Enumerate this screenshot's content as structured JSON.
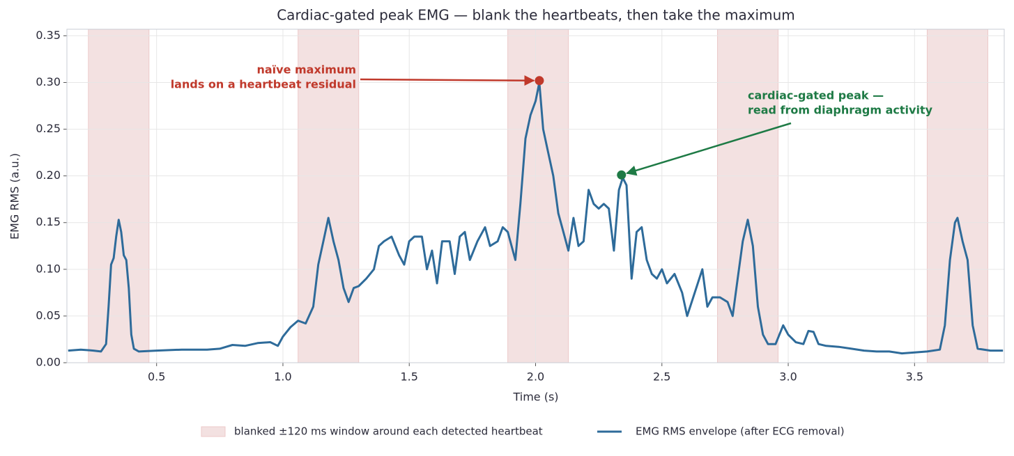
{
  "chart_data": {
    "type": "line",
    "title": "Cardiac-gated peak EMG — blank the heartbeats, then take the maximum",
    "x_label": "Time (s)",
    "y_label": "EMG RMS  (a.u.)",
    "xlim": [
      0.145,
      3.855
    ],
    "ylim": [
      0,
      0.357
    ],
    "xticks": [
      0.5,
      {
        "value": 1,
        "label": "1.0"
      },
      1.5,
      {
        "value": 2,
        "label": "2.0"
      },
      2.5,
      {
        "value": 3,
        "label": "3.0"
      },
      3.5
    ],
    "yticks": [
      {
        "value": 0,
        "label": "0.00"
      },
      {
        "value": 0.05,
        "label": "0.05"
      },
      {
        "value": 0.1,
        "label": "0.10"
      },
      {
        "value": 0.15,
        "label": "0.15"
      },
      {
        "value": 0.2,
        "label": "0.20"
      },
      {
        "value": 0.25,
        "label": "0.25"
      },
      {
        "value": 0.3,
        "label": "0.30"
      },
      {
        "value": 0.35,
        "label": "0.35"
      }
    ],
    "grid": true,
    "legend": "bottom",
    "bands_name": "blanked ±120 ms window around each detected heartbeat",
    "bands_color": "#f3e1e1",
    "bands": [
      [
        0.23,
        0.47
      ],
      [
        1.06,
        1.3
      ],
      [
        1.89,
        2.13
      ],
      [
        2.72,
        2.96
      ],
      [
        3.55,
        3.79
      ]
    ],
    "x": [
      0.15,
      0.2,
      0.25,
      0.28,
      0.3,
      0.31,
      0.32,
      0.33,
      0.34,
      0.35,
      0.36,
      0.37,
      0.38,
      0.39,
      0.4,
      0.41,
      0.43,
      0.5,
      0.6,
      0.7,
      0.75,
      0.8,
      0.85,
      0.9,
      0.95,
      0.98,
      1.0,
      1.03,
      1.06,
      1.09,
      1.12,
      1.14,
      1.16,
      1.18,
      1.2,
      1.22,
      1.24,
      1.26,
      1.28,
      1.3,
      1.33,
      1.36,
      1.38,
      1.4,
      1.43,
      1.46,
      1.48,
      1.5,
      1.52,
      1.55,
      1.57,
      1.59,
      1.61,
      1.63,
      1.66,
      1.68,
      1.7,
      1.72,
      1.74,
      1.77,
      1.8,
      1.82,
      1.85,
      1.87,
      1.89,
      1.92,
      1.94,
      1.96,
      1.98,
      2.0,
      2.015,
      2.03,
      2.05,
      2.07,
      2.09,
      2.11,
      2.13,
      2.15,
      2.17,
      2.19,
      2.21,
      2.23,
      2.25,
      2.27,
      2.29,
      2.31,
      2.33,
      2.345,
      2.36,
      2.38,
      2.4,
      2.42,
      2.44,
      2.46,
      2.48,
      2.5,
      2.52,
      2.55,
      2.58,
      2.6,
      2.63,
      2.66,
      2.68,
      2.7,
      2.73,
      2.76,
      2.78,
      2.8,
      2.82,
      2.84,
      2.86,
      2.88,
      2.9,
      2.92,
      2.95,
      2.98,
      3.0,
      3.03,
      3.06,
      3.08,
      3.1,
      3.12,
      3.15,
      3.2,
      3.25,
      3.3,
      3.35,
      3.4,
      3.45,
      3.5,
      3.55,
      3.6,
      3.62,
      3.64,
      3.66,
      3.67,
      3.69,
      3.71,
      3.73,
      3.75,
      3.8,
      3.85
    ],
    "series": [
      {
        "name": "EMG RMS envelope (after ECG removal)",
        "color": "#2e6b9a",
        "values": [
          0.013,
          0.014,
          0.013,
          0.012,
          0.02,
          0.06,
          0.105,
          0.112,
          0.135,
          0.153,
          0.14,
          0.115,
          0.11,
          0.08,
          0.03,
          0.015,
          0.012,
          0.013,
          0.014,
          0.014,
          0.015,
          0.019,
          0.018,
          0.021,
          0.022,
          0.018,
          0.028,
          0.038,
          0.045,
          0.042,
          0.06,
          0.105,
          0.13,
          0.155,
          0.13,
          0.11,
          0.08,
          0.065,
          0.08,
          0.082,
          0.09,
          0.1,
          0.125,
          0.13,
          0.135,
          0.115,
          0.105,
          0.13,
          0.135,
          0.135,
          0.1,
          0.12,
          0.085,
          0.13,
          0.13,
          0.095,
          0.135,
          0.14,
          0.11,
          0.13,
          0.145,
          0.125,
          0.13,
          0.145,
          0.14,
          0.11,
          0.17,
          0.24,
          0.265,
          0.28,
          0.3,
          0.25,
          0.225,
          0.2,
          0.16,
          0.14,
          0.12,
          0.155,
          0.125,
          0.13,
          0.185,
          0.17,
          0.165,
          0.17,
          0.165,
          0.12,
          0.185,
          0.198,
          0.19,
          0.09,
          0.14,
          0.145,
          0.11,
          0.095,
          0.09,
          0.1,
          0.085,
          0.095,
          0.075,
          0.05,
          0.075,
          0.1,
          0.06,
          0.07,
          0.07,
          0.065,
          0.05,
          0.09,
          0.13,
          0.153,
          0.125,
          0.06,
          0.03,
          0.02,
          0.02,
          0.04,
          0.03,
          0.022,
          0.02,
          0.034,
          0.033,
          0.02,
          0.018,
          0.017,
          0.015,
          0.013,
          0.012,
          0.012,
          0.01,
          0.011,
          0.012,
          0.014,
          0.04,
          0.11,
          0.15,
          0.155,
          0.13,
          0.11,
          0.04,
          0.015,
          0.013,
          0.013
        ]
      }
    ],
    "annotations": [
      {
        "text": [
          "naïve maximum",
          "lands on a heartbeat residual"
        ],
        "x": 2.015,
        "y": 0.302,
        "color": "#c0392b"
      },
      {
        "text": [
          "cardiac-gated peak —",
          "read from diaphragm activity"
        ],
        "x": 2.34,
        "y": 0.201,
        "color": "#1e7a45"
      }
    ]
  }
}
